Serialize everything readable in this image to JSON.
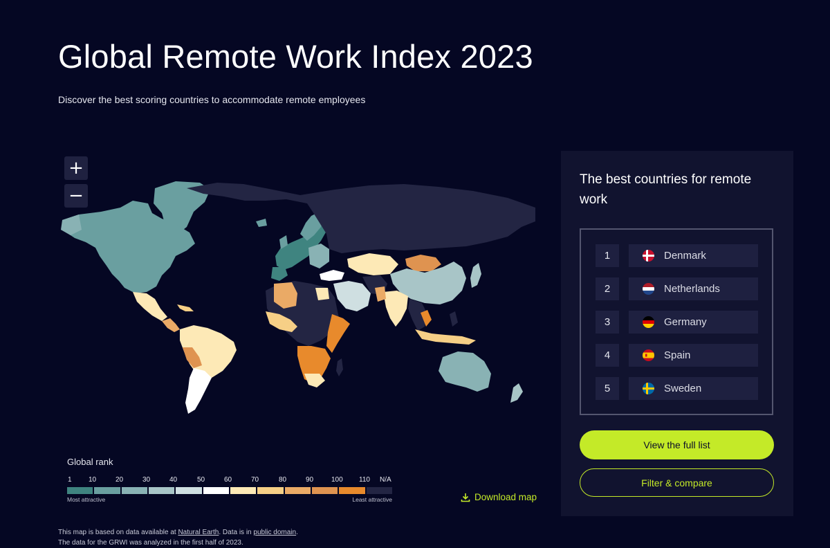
{
  "header": {
    "title": "Global Remote Work Index 2023",
    "subtitle": "Discover the best scoring countries to accommodate remote employees"
  },
  "map": {
    "zoom_in_label": "+",
    "zoom_out_label": "−"
  },
  "legend": {
    "title": "Global rank",
    "ticks": [
      "1",
      "10",
      "20",
      "30",
      "40",
      "50",
      "60",
      "70",
      "80",
      "90",
      "100",
      "110",
      "N/A"
    ],
    "colors": [
      "#3f8480",
      "#6a9fa0",
      "#89b2b4",
      "#a8c5c7",
      "#cfdfe1",
      "#ffffff",
      "#fde9b6",
      "#f6cf86",
      "#eaaa66",
      "#df9350",
      "#e88a2c",
      "#232543"
    ],
    "most_label": "Most attractive",
    "least_label": "Least attractive"
  },
  "download_label": "Download map",
  "note": {
    "line1_pre": "This map is based on data available at ",
    "line1_link1": "Natural Earth",
    "line1_mid": ". Data is in ",
    "line1_link2": "public domain",
    "line1_post": ".",
    "line2": "The data for the GRWI was analyzed in the first half of 2023."
  },
  "panel": {
    "title": "The best countries for remote work",
    "ranking": [
      {
        "rank": "1",
        "country": "Denmark",
        "flag": "denmark-flag-icon"
      },
      {
        "rank": "2",
        "country": "Netherlands",
        "flag": "netherlands-flag-icon"
      },
      {
        "rank": "3",
        "country": "Germany",
        "flag": "germany-flag-icon"
      },
      {
        "rank": "4",
        "country": "Spain",
        "flag": "spain-flag-icon"
      },
      {
        "rank": "5",
        "country": "Sweden",
        "flag": "sweden-flag-icon"
      }
    ],
    "view_full_list_label": "View the full list",
    "filter_compare_label": "Filter & compare"
  },
  "colors": {
    "accent": "#c4ea28",
    "background": "#050723",
    "panel": "#11132f"
  }
}
